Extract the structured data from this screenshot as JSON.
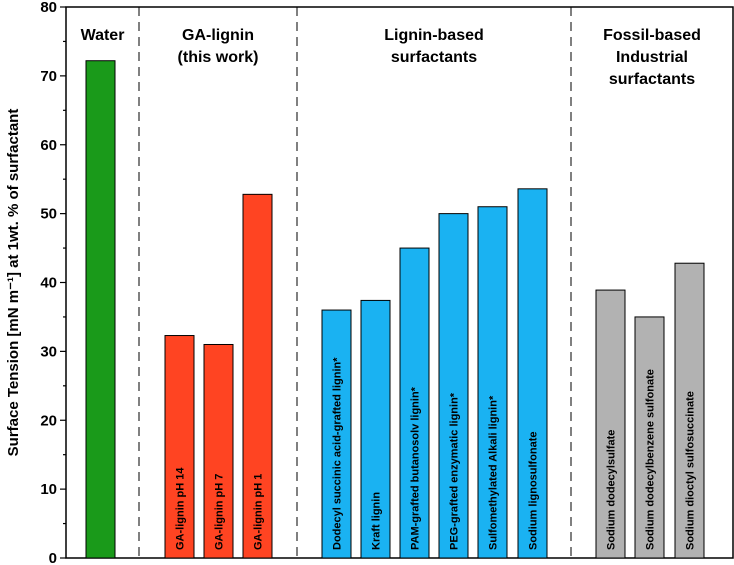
{
  "chart_data": {
    "type": "bar",
    "title": "",
    "xlabel": "",
    "ylabel": "Surface Tension [mN m⁻¹] at 1wt. % of surfactant",
    "ylim": [
      0,
      80
    ],
    "yticks": [
      "0",
      "10",
      "20",
      "30",
      "40",
      "50",
      "60",
      "70",
      "80"
    ],
    "groups": [
      {
        "label_lines": [
          "Water"
        ],
        "color": "#1a9a1a",
        "bars": [
          {
            "label": "",
            "value": 72.2
          }
        ]
      },
      {
        "label_lines": [
          "GA-lignin",
          "(this work)"
        ],
        "color": "#ff4422",
        "bars": [
          {
            "label": "GA-lignin pH 14",
            "value": 32.3
          },
          {
            "label": "GA-lignin pH 7",
            "value": 31.0
          },
          {
            "label": "GA-lignin pH 1",
            "value": 52.8
          }
        ]
      },
      {
        "label_lines": [
          "Lignin-based",
          "surfactants"
        ],
        "color": "#1ab2f2",
        "bars": [
          {
            "label": "Dodecyl succinic acid-grafted lignin*",
            "value": 36.0
          },
          {
            "label": "Kraft lignin",
            "value": 37.4
          },
          {
            "label": "PAM-grafted butanosolv lignin*",
            "value": 45.0
          },
          {
            "label": "PEG-grafted enzymatic lignin*",
            "value": 50.0
          },
          {
            "label": "Sulfomethylated Alkali lignin*",
            "value": 51.0
          },
          {
            "label": "Sodium lignosulfonate",
            "value": 53.6
          }
        ]
      },
      {
        "label_lines": [
          "Fossil-based",
          "Industrial",
          "surfactants"
        ],
        "color": "#b2b2b2",
        "bars": [
          {
            "label": "Sodium dodecylsulfate",
            "value": 38.9
          },
          {
            "label": "Sodium dodecylbenzene sulfonate",
            "value": 35.0
          },
          {
            "label": "Sodium dioctyl sulfosuccinate",
            "value": 42.8
          }
        ]
      }
    ]
  }
}
